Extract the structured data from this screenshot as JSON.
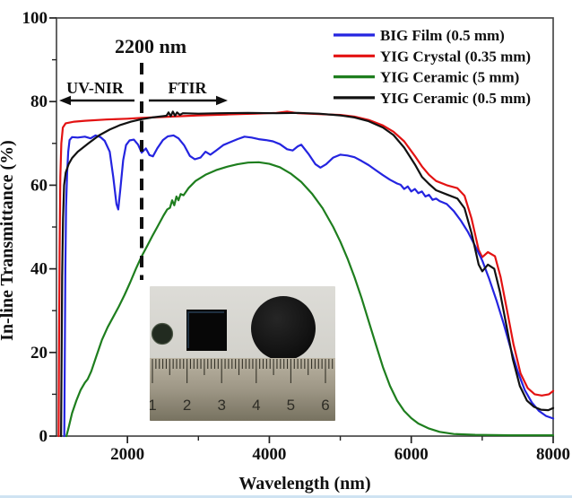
{
  "figure": {
    "x_axis_label": "Wavelength (nm)",
    "y_axis_label": "In-line Transmittance (%)"
  },
  "annotations": {
    "cutoff_label": "2200 nm",
    "left_region_label": "UV-NIR",
    "right_region_label": "FTIR"
  },
  "inset": {
    "ruler_numbers": [
      "1",
      "2",
      "3",
      "4",
      "5",
      "6"
    ]
  },
  "chart_data": {
    "type": "line",
    "title": "",
    "xlabel": "Wavelength (nm)",
    "ylabel": "In-line Transmittance (%)",
    "xlim": [
      1000,
      8000
    ],
    "ylim": [
      0,
      100
    ],
    "xticks_major": [
      2000,
      4000,
      6000,
      8000
    ],
    "xticks_minor": [
      3000,
      5000,
      7000
    ],
    "yticks_major": [
      0,
      20,
      40,
      60,
      80,
      100
    ],
    "yticks_minor": [
      10,
      30,
      50,
      70,
      90
    ],
    "grid": false,
    "legend_position": "top-right",
    "annotation_cutoff_nm": 2200,
    "series": [
      {
        "id": "big-film",
        "name": "BIG Film (0.5 mm)",
        "color": "#2424e0",
        "points": [
          [
            1110,
            0
          ],
          [
            1117,
            20
          ],
          [
            1125,
            40
          ],
          [
            1135,
            55
          ],
          [
            1150,
            63
          ],
          [
            1165,
            68
          ],
          [
            1185,
            70.8
          ],
          [
            1220,
            71.5
          ],
          [
            1300,
            71.4
          ],
          [
            1400,
            71.6
          ],
          [
            1480,
            71.2
          ],
          [
            1550,
            71.9
          ],
          [
            1620,
            71.5
          ],
          [
            1680,
            70.6
          ],
          [
            1750,
            68
          ],
          [
            1800,
            62
          ],
          [
            1845,
            55.5
          ],
          [
            1870,
            54.2
          ],
          [
            1900,
            59
          ],
          [
            1940,
            66
          ],
          [
            1980,
            69.6
          ],
          [
            2030,
            70.7
          ],
          [
            2090,
            70.9
          ],
          [
            2150,
            69.7
          ],
          [
            2200,
            67.8
          ],
          [
            2260,
            68.8
          ],
          [
            2310,
            67.2
          ],
          [
            2360,
            66.9
          ],
          [
            2420,
            68.8
          ],
          [
            2500,
            70.8
          ],
          [
            2570,
            71.7
          ],
          [
            2650,
            71.9
          ],
          [
            2720,
            71.2
          ],
          [
            2800,
            69.5
          ],
          [
            2880,
            67
          ],
          [
            2950,
            66.2
          ],
          [
            3030,
            66.6
          ],
          [
            3100,
            68
          ],
          [
            3170,
            67.3
          ],
          [
            3250,
            68.3
          ],
          [
            3350,
            69.6
          ],
          [
            3450,
            70.3
          ],
          [
            3550,
            71
          ],
          [
            3650,
            71.6
          ],
          [
            3750,
            71.4
          ],
          [
            3850,
            71
          ],
          [
            3950,
            70.8
          ],
          [
            4050,
            70.5
          ],
          [
            4150,
            69.8
          ],
          [
            4250,
            68.6
          ],
          [
            4330,
            68.3
          ],
          [
            4400,
            69.3
          ],
          [
            4450,
            69.7
          ],
          [
            4550,
            67.5
          ],
          [
            4650,
            65
          ],
          [
            4720,
            64.2
          ],
          [
            4800,
            65
          ],
          [
            4900,
            66.6
          ],
          [
            5000,
            67.3
          ],
          [
            5100,
            67.1
          ],
          [
            5200,
            66.7
          ],
          [
            5300,
            65.8
          ],
          [
            5400,
            64.8
          ],
          [
            5500,
            63.6
          ],
          [
            5600,
            62.4
          ],
          [
            5700,
            61.3
          ],
          [
            5800,
            60.4
          ],
          [
            5850,
            60.1
          ],
          [
            5900,
            59.1
          ],
          [
            5950,
            59.7
          ],
          [
            6000,
            58.5
          ],
          [
            6050,
            59.1
          ],
          [
            6100,
            58.1
          ],
          [
            6150,
            58.5
          ],
          [
            6200,
            57.3
          ],
          [
            6250,
            57.7
          ],
          [
            6300,
            56.5
          ],
          [
            6350,
            56.8
          ],
          [
            6400,
            56.2
          ],
          [
            6500,
            55.5
          ],
          [
            6600,
            53.8
          ],
          [
            6700,
            51.5
          ],
          [
            6800,
            48.8
          ],
          [
            6900,
            45.5
          ],
          [
            7000,
            42
          ],
          [
            7100,
            37.5
          ],
          [
            7200,
            32.5
          ],
          [
            7300,
            27
          ],
          [
            7400,
            21
          ],
          [
            7500,
            15.5
          ],
          [
            7600,
            11
          ],
          [
            7700,
            8
          ],
          [
            7800,
            6
          ],
          [
            7900,
            4.8
          ],
          [
            8000,
            4.2
          ]
        ]
      },
      {
        "id": "yig-crystal",
        "name": "YIG Crystal (0.35 mm)",
        "color": "#e31212",
        "points": [
          [
            1030,
            0
          ],
          [
            1036,
            20
          ],
          [
            1044,
            45
          ],
          [
            1054,
            62
          ],
          [
            1068,
            70
          ],
          [
            1090,
            73.8
          ],
          [
            1130,
            74.8
          ],
          [
            1250,
            75.2
          ],
          [
            1400,
            75.4
          ],
          [
            1700,
            75.7
          ],
          [
            2000,
            75.9
          ],
          [
            2200,
            76.1
          ],
          [
            2600,
            76.4
          ],
          [
            3000,
            76.7
          ],
          [
            3400,
            76.9
          ],
          [
            3800,
            77.1
          ],
          [
            4100,
            77.3
          ],
          [
            4250,
            77.6
          ],
          [
            4400,
            77.2
          ],
          [
            4700,
            77
          ],
          [
            5000,
            76.8
          ],
          [
            5200,
            76.4
          ],
          [
            5400,
            75.6
          ],
          [
            5600,
            74.3
          ],
          [
            5750,
            72.8
          ],
          [
            5900,
            70.5
          ],
          [
            6050,
            67
          ],
          [
            6150,
            64.5
          ],
          [
            6250,
            62.5
          ],
          [
            6350,
            61
          ],
          [
            6500,
            60
          ],
          [
            6650,
            59.3
          ],
          [
            6750,
            57.5
          ],
          [
            6850,
            52
          ],
          [
            6950,
            44.5
          ],
          [
            7000,
            42.8
          ],
          [
            7080,
            44
          ],
          [
            7180,
            43
          ],
          [
            7260,
            38
          ],
          [
            7350,
            30
          ],
          [
            7440,
            22
          ],
          [
            7540,
            15
          ],
          [
            7640,
            11.5
          ],
          [
            7740,
            10
          ],
          [
            7840,
            9.7
          ],
          [
            7940,
            10
          ],
          [
            8000,
            10.8
          ]
        ]
      },
      {
        "id": "yig-ceramic-5mm",
        "name": "YIG Ceramic (5 mm)",
        "color": "#1e7e1e",
        "points": [
          [
            1140,
            0
          ],
          [
            1170,
            2
          ],
          [
            1220,
            5.5
          ],
          [
            1280,
            8.5
          ],
          [
            1340,
            11
          ],
          [
            1400,
            12.8
          ],
          [
            1440,
            13.6
          ],
          [
            1490,
            15.5
          ],
          [
            1560,
            19
          ],
          [
            1640,
            23
          ],
          [
            1720,
            26
          ],
          [
            1800,
            28.5
          ],
          [
            1880,
            31
          ],
          [
            1960,
            33.8
          ],
          [
            2040,
            36.8
          ],
          [
            2120,
            40
          ],
          [
            2200,
            43
          ],
          [
            2270,
            45.2
          ],
          [
            2350,
            47.8
          ],
          [
            2430,
            50.3
          ],
          [
            2510,
            52.8
          ],
          [
            2560,
            54.2
          ],
          [
            2600,
            54.6
          ],
          [
            2630,
            56.4
          ],
          [
            2660,
            55.2
          ],
          [
            2690,
            57.3
          ],
          [
            2720,
            56.4
          ],
          [
            2750,
            57.9
          ],
          [
            2790,
            57.6
          ],
          [
            2860,
            59.3
          ],
          [
            2960,
            61
          ],
          [
            3100,
            62.5
          ],
          [
            3250,
            63.6
          ],
          [
            3400,
            64.4
          ],
          [
            3550,
            65
          ],
          [
            3700,
            65.4
          ],
          [
            3850,
            65.5
          ],
          [
            4000,
            65.1
          ],
          [
            4150,
            64.3
          ],
          [
            4300,
            62.8
          ],
          [
            4450,
            60.8
          ],
          [
            4600,
            58
          ],
          [
            4750,
            54.5
          ],
          [
            4900,
            50
          ],
          [
            5000,
            46.5
          ],
          [
            5100,
            42.5
          ],
          [
            5200,
            38
          ],
          [
            5300,
            33
          ],
          [
            5400,
            27.5
          ],
          [
            5500,
            22
          ],
          [
            5600,
            16.5
          ],
          [
            5700,
            12
          ],
          [
            5800,
            8.5
          ],
          [
            5900,
            6
          ],
          [
            6000,
            4.3
          ],
          [
            6100,
            3
          ],
          [
            6250,
            1.8
          ],
          [
            6400,
            1
          ],
          [
            6600,
            0.5
          ],
          [
            6900,
            0.3
          ],
          [
            7400,
            0.2
          ],
          [
            8000,
            0.2
          ]
        ]
      },
      {
        "id": "yig-ceramic-05mm",
        "name": "YIG Ceramic (0.5 mm)",
        "color": "#121212",
        "points": [
          [
            1065,
            0
          ],
          [
            1072,
            18
          ],
          [
            1080,
            38
          ],
          [
            1092,
            52
          ],
          [
            1108,
            60
          ],
          [
            1130,
            63
          ],
          [
            1170,
            65
          ],
          [
            1220,
            66.5
          ],
          [
            1300,
            68
          ],
          [
            1450,
            70
          ],
          [
            1600,
            71.9
          ],
          [
            1750,
            73.3
          ],
          [
            1900,
            74.4
          ],
          [
            2050,
            75.2
          ],
          [
            2200,
            75.8
          ],
          [
            2350,
            76.2
          ],
          [
            2500,
            76.5
          ],
          [
            2550,
            76.6
          ],
          [
            2580,
            77.4
          ],
          [
            2610,
            76.5
          ],
          [
            2640,
            77.6
          ],
          [
            2670,
            76.6
          ],
          [
            2700,
            77.4
          ],
          [
            2740,
            76.8
          ],
          [
            2780,
            77.2
          ],
          [
            3000,
            77.1
          ],
          [
            3300,
            77.2
          ],
          [
            3700,
            77.3
          ],
          [
            4100,
            77.2
          ],
          [
            4400,
            77.3
          ],
          [
            4700,
            77.1
          ],
          [
            5000,
            76.7
          ],
          [
            5200,
            76.2
          ],
          [
            5400,
            75.3
          ],
          [
            5600,
            73.8
          ],
          [
            5750,
            72
          ],
          [
            5900,
            69
          ],
          [
            6050,
            65
          ],
          [
            6150,
            62
          ],
          [
            6250,
            60.3
          ],
          [
            6350,
            58.8
          ],
          [
            6500,
            57.8
          ],
          [
            6650,
            56.8
          ],
          [
            6750,
            54.5
          ],
          [
            6850,
            48.5
          ],
          [
            6950,
            41
          ],
          [
            7000,
            39.4
          ],
          [
            7080,
            41
          ],
          [
            7170,
            40
          ],
          [
            7250,
            34.5
          ],
          [
            7340,
            26.5
          ],
          [
            7430,
            18.5
          ],
          [
            7530,
            12
          ],
          [
            7630,
            8.5
          ],
          [
            7730,
            7
          ],
          [
            7830,
            6.3
          ],
          [
            7930,
            6.2
          ],
          [
            8000,
            6.7
          ]
        ]
      }
    ]
  }
}
